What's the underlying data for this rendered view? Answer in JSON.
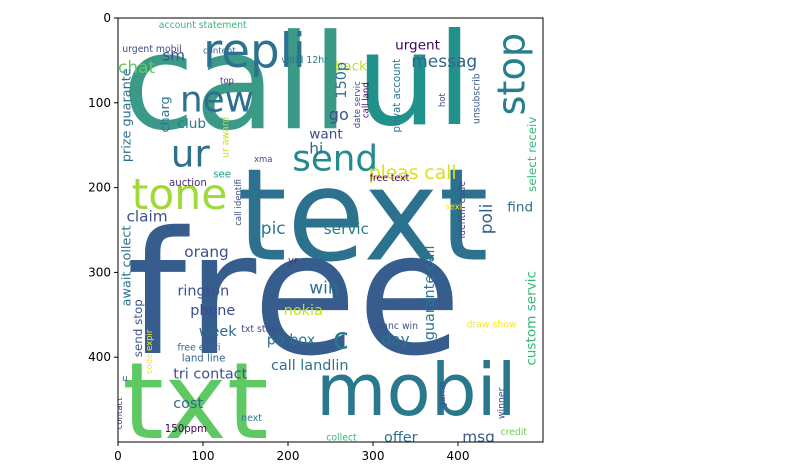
{
  "chart_data": {
    "type": "wordcloud",
    "title": "",
    "xlabel": "",
    "ylabel": "",
    "xlim": [
      0,
      500
    ],
    "ylim": [
      500,
      0
    ],
    "xticks": [
      0,
      100,
      200,
      300,
      400
    ],
    "yticks": [
      0,
      100,
      200,
      300,
      400
    ],
    "background": "#ffffff",
    "words": [
      {
        "text": "call",
        "x": 5,
        "y": 130,
        "size": 155,
        "rotate": 0,
        "color": "#3b9a87"
      },
      {
        "text": "ul",
        "x": 280,
        "y": 125,
        "size": 150,
        "rotate": 0,
        "color": "#21918c"
      },
      {
        "text": "text",
        "x": 140,
        "y": 285,
        "size": 150,
        "rotate": 0,
        "color": "#2c728e"
      },
      {
        "text": "free",
        "x": 10,
        "y": 395,
        "size": 200,
        "rotate": 0,
        "color": "#365d8d"
      },
      {
        "text": "txt",
        "x": 5,
        "y": 495,
        "size": 125,
        "rotate": 0,
        "color": "#5ec962"
      },
      {
        "text": "mobil",
        "x": 233,
        "y": 468,
        "size": 85,
        "rotate": 0,
        "color": "#2a788e"
      },
      {
        "text": "repli",
        "x": 100,
        "y": 58,
        "size": 55,
        "rotate": 0,
        "color": "#2c728e"
      },
      {
        "text": "stop",
        "x": 478,
        "y": 115,
        "size": 45,
        "rotate": -90,
        "color": "#277f8e"
      },
      {
        "text": "new",
        "x": 73,
        "y": 110,
        "size": 42,
        "rotate": 0,
        "color": "#2d708e"
      },
      {
        "text": "ur",
        "x": 62,
        "y": 175,
        "size": 44,
        "rotate": 0,
        "color": "#2c728e"
      },
      {
        "text": "tone",
        "x": 16,
        "y": 225,
        "size": 50,
        "rotate": 0,
        "color": "#a0da39"
      },
      {
        "text": "send",
        "x": 205,
        "y": 180,
        "size": 42,
        "rotate": 0,
        "color": "#238a8d"
      },
      {
        "text": "pleas call",
        "x": 295,
        "y": 190,
        "size": 22,
        "rotate": 0,
        "color": "#d8e219"
      },
      {
        "text": "messag",
        "x": 345,
        "y": 58,
        "size": 20,
        "rotate": 0,
        "color": "#32648e"
      },
      {
        "text": "urgent",
        "x": 326,
        "y": 37,
        "size": 16,
        "rotate": 0,
        "color": "#440154"
      },
      {
        "text": "back",
        "x": 255,
        "y": 62,
        "size": 16,
        "rotate": 0,
        "color": "#bddf26"
      },
      {
        "text": "150p",
        "x": 268,
        "y": 95,
        "size": 17,
        "rotate": -90,
        "color": "#2e6f8e"
      },
      {
        "text": "go",
        "x": 248,
        "y": 120,
        "size": 19,
        "rotate": 0,
        "color": "#3b528b"
      },
      {
        "text": "want",
        "x": 225,
        "y": 142,
        "size": 16,
        "rotate": 0,
        "color": "#3e4989"
      },
      {
        "text": "hi",
        "x": 225,
        "y": 160,
        "size": 18,
        "rotate": 0,
        "color": "#31688e"
      },
      {
        "text": "chat",
        "x": 0,
        "y": 65,
        "size": 20,
        "rotate": 0,
        "color": "#5ec962"
      },
      {
        "text": "sm",
        "x": 52,
        "y": 50,
        "size": 18,
        "rotate": 0,
        "color": "#3b528b"
      },
      {
        "text": "account statement",
        "x": 48,
        "y": 12,
        "size": 11,
        "rotate": 0,
        "color": "#35b779"
      },
      {
        "text": "urgent mobil",
        "x": 5,
        "y": 40,
        "size": 11,
        "rotate": 0,
        "color": "#3e4a89"
      },
      {
        "text": "content",
        "x": 100,
        "y": 42,
        "size": 10,
        "rotate": 0,
        "color": "#31688e"
      },
      {
        "text": "valid 12hr",
        "x": 192,
        "y": 53,
        "size": 11,
        "rotate": 0,
        "color": "#2a788e"
      },
      {
        "text": "top",
        "x": 120,
        "y": 77,
        "size": 10,
        "rotate": 0,
        "color": "#482878"
      },
      {
        "text": "charg",
        "x": 60,
        "y": 135,
        "size": 15,
        "rotate": -90,
        "color": "#2a788e"
      },
      {
        "text": "club",
        "x": 70,
        "y": 130,
        "size": 16,
        "rotate": 0,
        "color": "#2a788e"
      },
      {
        "text": "prize guarante",
        "x": 15,
        "y": 170,
        "size": 15,
        "rotate": -90,
        "color": "#2c728e"
      },
      {
        "text": "ur award",
        "x": 130,
        "y": 165,
        "size": 11,
        "rotate": -90,
        "color": "#c2df23"
      },
      {
        "text": "xma",
        "x": 160,
        "y": 170,
        "size": 10,
        "rotate": 0,
        "color": "#3e4a89"
      },
      {
        "text": "see",
        "x": 112,
        "y": 188,
        "size": 12,
        "rotate": 0,
        "color": "#1f9e89"
      },
      {
        "text": "auction",
        "x": 60,
        "y": 198,
        "size": 12,
        "rotate": 0,
        "color": "#46337e"
      },
      {
        "text": "free text",
        "x": 296,
        "y": 192,
        "size": 11,
        "rotate": 0,
        "color": "#440154"
      },
      {
        "text": "call land",
        "x": 295,
        "y": 118,
        "size": 10,
        "rotate": -90,
        "color": "#440154"
      },
      {
        "text": "date servic",
        "x": 285,
        "y": 130,
        "size": 10,
        "rotate": -90,
        "color": "#3e4a89"
      },
      {
        "text": "privat account",
        "x": 332,
        "y": 135,
        "size": 12,
        "rotate": -90,
        "color": "#2a788e"
      },
      {
        "text": "hot",
        "x": 385,
        "y": 105,
        "size": 10,
        "rotate": -90,
        "color": "#3e4a89"
      },
      {
        "text": "unsubscrib",
        "x": 425,
        "y": 125,
        "size": 11,
        "rotate": -90,
        "color": "#365d8d"
      },
      {
        "text": "select receiv",
        "x": 492,
        "y": 205,
        "size": 14,
        "rotate": -90,
        "color": "#35b779"
      },
      {
        "text": "find",
        "x": 458,
        "y": 228,
        "size": 16,
        "rotate": 0,
        "color": "#2d708e"
      },
      {
        "text": "poli",
        "x": 440,
        "y": 255,
        "size": 20,
        "rotate": -90,
        "color": "#33638d"
      },
      {
        "text": "identifi code",
        "x": 408,
        "y": 260,
        "size": 11,
        "rotate": -90,
        "color": "#3e4a89"
      },
      {
        "text": "sexi",
        "x": 385,
        "y": 226,
        "size": 10,
        "rotate": 0,
        "color": "#fde725"
      },
      {
        "text": "claim",
        "x": 10,
        "y": 240,
        "size": 18,
        "rotate": 0,
        "color": "#3b528b"
      },
      {
        "text": "pic",
        "x": 168,
        "y": 255,
        "size": 20,
        "rotate": 0,
        "color": "#2a788e"
      },
      {
        "text": "servic",
        "x": 242,
        "y": 255,
        "size": 18,
        "rotate": 0,
        "color": "#26828e"
      },
      {
        "text": "call identifi",
        "x": 145,
        "y": 245,
        "size": 10,
        "rotate": -90,
        "color": "#3e4a89"
      },
      {
        "text": "orang",
        "x": 78,
        "y": 282,
        "size": 18,
        "rotate": 0,
        "color": "#3b528b"
      },
      {
        "text": "await collect",
        "x": 15,
        "y": 340,
        "size": 15,
        "rotate": -90,
        "color": "#2c728e"
      },
      {
        "text": "yr",
        "x": 200,
        "y": 290,
        "size": 12,
        "rotate": 0,
        "color": "#46337e"
      },
      {
        "text": "guarante call",
        "x": 372,
        "y": 380,
        "size": 17,
        "rotate": -90,
        "color": "#2a788e"
      },
      {
        "text": "custom servic",
        "x": 491,
        "y": 410,
        "size": 16,
        "rotate": -90,
        "color": "#35b779"
      },
      {
        "text": "rington",
        "x": 70,
        "y": 327,
        "size": 17,
        "rotate": 0,
        "color": "#3b528b"
      },
      {
        "text": "win",
        "x": 225,
        "y": 325,
        "size": 20,
        "rotate": 0,
        "color": "#2d708e"
      },
      {
        "text": "phone",
        "x": 85,
        "y": 350,
        "size": 17,
        "rotate": 0,
        "color": "#3e4989"
      },
      {
        "text": "send stop",
        "x": 28,
        "y": 400,
        "size": 14,
        "rotate": -90,
        "color": "#3b528b"
      },
      {
        "text": "nokia",
        "x": 195,
        "y": 350,
        "size": 17,
        "rotate": 0,
        "color": "#bddf26"
      },
      {
        "text": "week",
        "x": 95,
        "y": 375,
        "size": 17,
        "rotate": 0,
        "color": "#31688e"
      },
      {
        "text": "txt stop",
        "x": 145,
        "y": 370,
        "size": 11,
        "rotate": 0,
        "color": "#3e4a89"
      },
      {
        "text": "po box",
        "x": 175,
        "y": 385,
        "size": 17,
        "rotate": 0,
        "color": "#2c728e"
      },
      {
        "text": "c",
        "x": 253,
        "y": 390,
        "size": 34,
        "rotate": 0,
        "color": "#2a788e"
      },
      {
        "text": "chanc win",
        "x": 298,
        "y": 367,
        "size": 11,
        "rotate": 0,
        "color": "#3b528b"
      },
      {
        "text": "draw show",
        "x": 410,
        "y": 365,
        "size": 11,
        "rotate": 0,
        "color": "#fde725"
      },
      {
        "text": "day",
        "x": 310,
        "y": 385,
        "size": 18,
        "rotate": 0,
        "color": "#2c728e"
      },
      {
        "text": "free entri",
        "x": 70,
        "y": 392,
        "size": 11,
        "rotate": 0,
        "color": "#31688e"
      },
      {
        "text": "land line",
        "x": 75,
        "y": 405,
        "size": 12,
        "rotate": 0,
        "color": "#31688e"
      },
      {
        "text": "code expir",
        "x": 40,
        "y": 420,
        "size": 10,
        "rotate": -90,
        "color": "#fde725"
      },
      {
        "text": "call landlin",
        "x": 180,
        "y": 415,
        "size": 17,
        "rotate": 0,
        "color": "#2c728e"
      },
      {
        "text": "tri contact",
        "x": 65,
        "y": 425,
        "size": 17,
        "rotate": 0,
        "color": "#3b528b"
      },
      {
        "text": "u",
        "x": 5,
        "y": 428,
        "size": 10,
        "rotate": 0,
        "color": "#3b528b"
      },
      {
        "text": "cost",
        "x": 65,
        "y": 460,
        "size": 17,
        "rotate": 0,
        "color": "#31688e"
      },
      {
        "text": "game",
        "x": 385,
        "y": 460,
        "size": 11,
        "rotate": -90,
        "color": "#3b528b"
      },
      {
        "text": "winner",
        "x": 455,
        "y": 473,
        "size": 11,
        "rotate": -90,
        "color": "#3b528b"
      },
      {
        "text": "contact",
        "x": 5,
        "y": 485,
        "size": 10,
        "rotate": -90,
        "color": "#3e4a89"
      },
      {
        "text": "next",
        "x": 145,
        "y": 475,
        "size": 11,
        "rotate": 0,
        "color": "#2a788e"
      },
      {
        "text": "150ppm",
        "x": 55,
        "y": 488,
        "size": 12,
        "rotate": 0,
        "color": "#440154"
      },
      {
        "text": "offer",
        "x": 313,
        "y": 500,
        "size": 17,
        "rotate": 0,
        "color": "#2c728e"
      },
      {
        "text": "collect",
        "x": 245,
        "y": 498,
        "size": 11,
        "rotate": 0,
        "color": "#35b779"
      },
      {
        "text": "msg",
        "x": 405,
        "y": 500,
        "size": 18,
        "rotate": 0,
        "color": "#365d8d"
      },
      {
        "text": "credit",
        "x": 450,
        "y": 492,
        "size": 11,
        "rotate": 0,
        "color": "#6ece58"
      }
    ]
  }
}
